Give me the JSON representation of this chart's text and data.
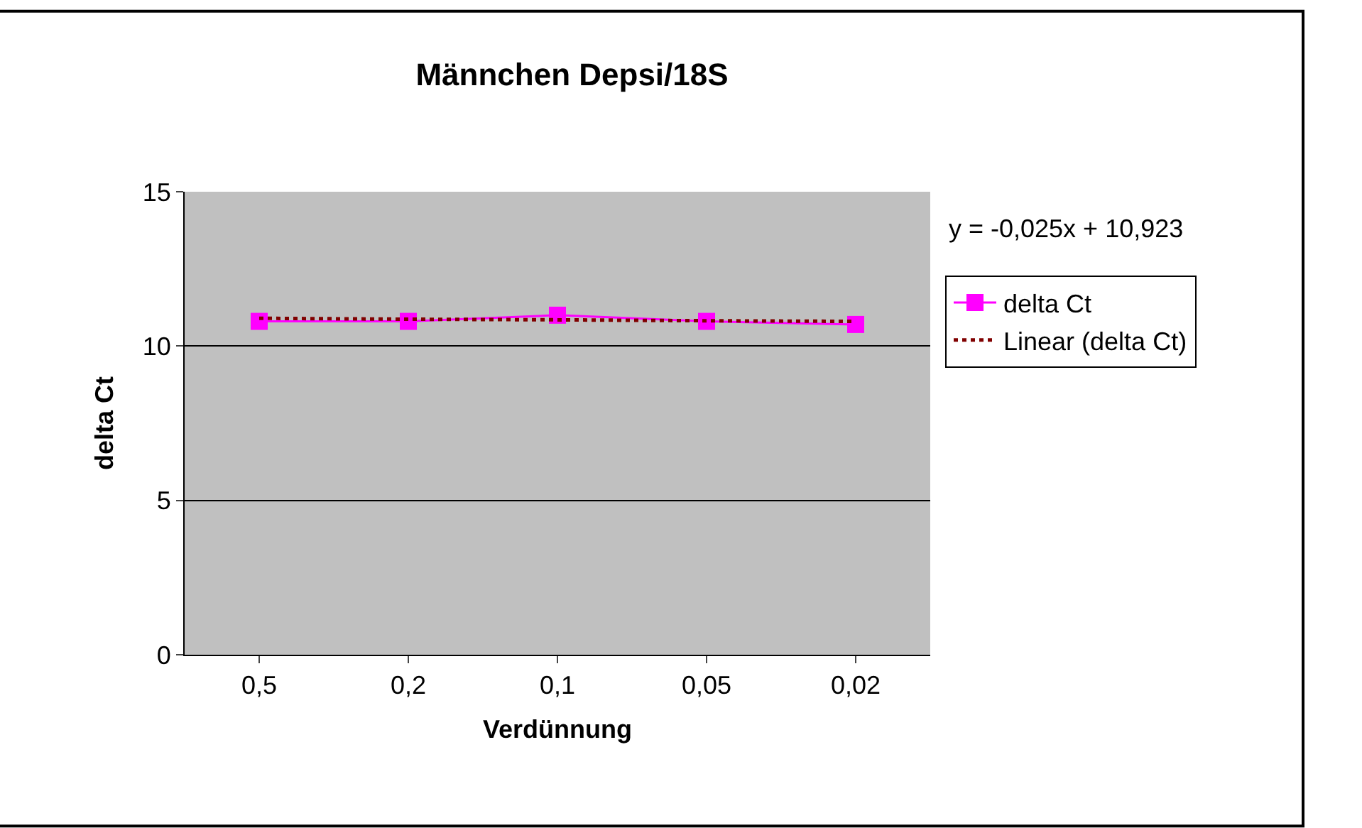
{
  "chart_data": {
    "type": "line",
    "title": "Männchen Depsi/18S",
    "xlabel": "Verdünnung",
    "ylabel": "delta Ct",
    "categories": [
      "0,5",
      "0,2",
      "0,1",
      "0,05",
      "0,02"
    ],
    "series": [
      {
        "name": "delta Ct",
        "color": "#ff00ff",
        "values": [
          10.8,
          10.8,
          11.0,
          10.8,
          10.7
        ],
        "marker": "square",
        "line_style": "solid"
      },
      {
        "name": "Linear (delta Ct)",
        "color": "#800000",
        "values": [
          10.9,
          10.87,
          10.85,
          10.82,
          10.8
        ],
        "marker": "none",
        "line_style": "dotted"
      }
    ],
    "ylim": [
      0,
      15
    ],
    "yticks": [
      0,
      5,
      10,
      15
    ],
    "grid": "y",
    "legend": "right",
    "annotations": [
      "y = -0,025x + 10,923"
    ]
  }
}
